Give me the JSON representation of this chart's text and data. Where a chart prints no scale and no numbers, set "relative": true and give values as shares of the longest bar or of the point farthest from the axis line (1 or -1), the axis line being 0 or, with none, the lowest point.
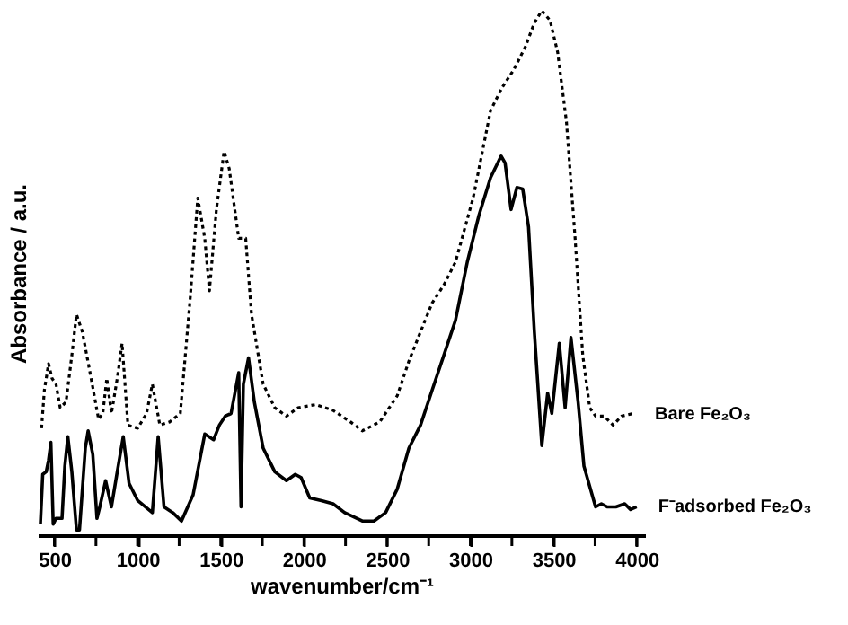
{
  "chart_data": {
    "type": "line",
    "relative": true,
    "xlabel": "wavenumber/cm⁻¹",
    "ylabel": "Absorbance / a.u.",
    "xlim": [
      400,
      4050
    ],
    "xticks": [
      500,
      {
        "value": 750,
        "label": null
      },
      1000,
      {
        "value": 1250,
        "label": null
      },
      1500,
      {
        "value": 1750,
        "label": null
      },
      2000,
      {
        "value": 2250,
        "label": null
      },
      2500,
      {
        "value": 2750,
        "label": null
      },
      3000,
      {
        "value": 3250,
        "label": null
      },
      3500,
      {
        "value": 3750,
        "label": null
      },
      4000
    ],
    "grid": false,
    "marker": "none",
    "series": [
      {
        "name": "Bare Fe₂O₃",
        "color": "#000000",
        "line_style": "dotted",
        "x": [
          423,
          440,
          465,
          486,
          510,
          535,
          570,
          605,
          633,
          668,
          721,
          766,
          791,
          815,
          843,
          878,
          907,
          942,
          1001,
          1054,
          1089,
          1134,
          1194,
          1257,
          1317,
          1362,
          1404,
          1432,
          1474,
          1520,
          1551,
          1608,
          1650,
          1685,
          1755,
          1825,
          1895,
          1965,
          2070,
          2175,
          2280,
          2351,
          2456,
          2561,
          2631,
          2701,
          2771,
          2841,
          2911,
          3017,
          3122,
          3192,
          3262,
          3332,
          3385,
          3430,
          3479,
          3525,
          3578,
          3630,
          3676,
          3718,
          3753,
          3805,
          3858,
          3910,
          3980
        ],
        "values": [
          0.204,
          0.277,
          0.327,
          0.299,
          0.288,
          0.243,
          0.254,
          0.343,
          0.421,
          0.388,
          0.299,
          0.221,
          0.232,
          0.299,
          0.232,
          0.299,
          0.366,
          0.21,
          0.204,
          0.232,
          0.288,
          0.21,
          0.216,
          0.232,
          0.454,
          0.643,
          0.566,
          0.466,
          0.621,
          0.732,
          0.699,
          0.566,
          0.566,
          0.421,
          0.288,
          0.243,
          0.227,
          0.243,
          0.249,
          0.238,
          0.216,
          0.199,
          0.216,
          0.266,
          0.332,
          0.388,
          0.443,
          0.477,
          0.521,
          0.643,
          0.81,
          0.854,
          0.888,
          0.932,
          0.977,
          1,
          0.982,
          0.921,
          0.788,
          0.566,
          0.343,
          0.243,
          0.227,
          0.227,
          0.21,
          0.227,
          0.232
        ]
      },
      {
        "name": "F⁻adsorbed Fe₂O₃",
        "color": "#000000",
        "line_style": "solid",
        "x": [
          416,
          430,
          451,
          465,
          479,
          493,
          510,
          546,
          563,
          581,
          605,
          633,
          651,
          686,
          703,
          731,
          756,
          773,
          808,
          843,
          878,
          914,
          949,
          1001,
          1089,
          1124,
          1159,
          1212,
          1264,
          1334,
          1404,
          1457,
          1492,
          1527,
          1562,
          1608,
          1622,
          1636,
          1667,
          1702,
          1755,
          1825,
          1895,
          1948,
          1983,
          2035,
          2105,
          2175,
          2245,
          2351,
          2421,
          2491,
          2561,
          2631,
          2701,
          2771,
          2841,
          2911,
          2982,
          3052,
          3122,
          3185,
          3209,
          3245,
          3280,
          3315,
          3350,
          3385,
          3430,
          3465,
          3490,
          3535,
          3570,
          3605,
          3648,
          3683,
          3718,
          3753,
          3788,
          3823,
          3875,
          3928,
          3963,
          4000
        ],
        "values": [
          0.021,
          0.116,
          0.121,
          0.143,
          0.177,
          0.021,
          0.032,
          0.032,
          0.132,
          0.188,
          0.121,
          0.01,
          0.01,
          0.166,
          0.199,
          0.154,
          0.032,
          0.054,
          0.104,
          0.054,
          0.121,
          0.188,
          0.099,
          0.066,
          0.043,
          0.188,
          0.054,
          0.043,
          0.027,
          0.077,
          0.193,
          0.182,
          0.21,
          0.227,
          0.232,
          0.31,
          0.054,
          0.288,
          0.338,
          0.254,
          0.166,
          0.121,
          0.104,
          0.116,
          0.11,
          0.071,
          0.066,
          0.06,
          0.043,
          0.027,
          0.027,
          0.043,
          0.088,
          0.166,
          0.21,
          0.277,
          0.343,
          0.41,
          0.521,
          0.61,
          0.682,
          0.723,
          0.71,
          0.621,
          0.663,
          0.66,
          0.588,
          0.388,
          0.171,
          0.271,
          0.232,
          0.366,
          0.243,
          0.377,
          0.254,
          0.132,
          0.093,
          0.054,
          0.06,
          0.054,
          0.054,
          0.06,
          0.049,
          0.054
        ]
      }
    ]
  }
}
